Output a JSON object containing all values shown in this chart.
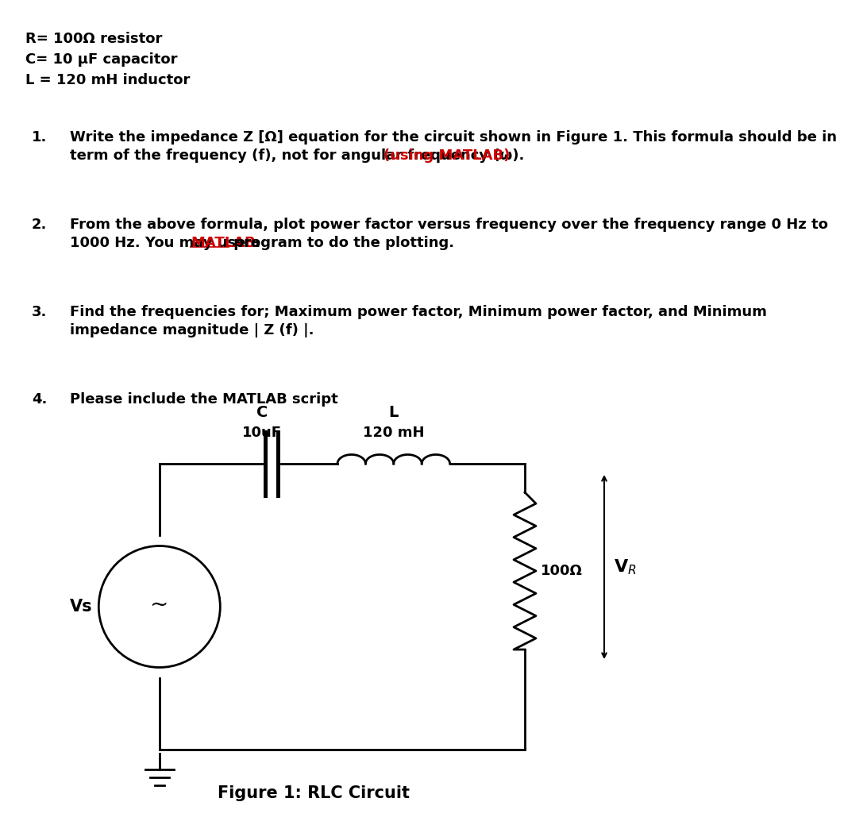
{
  "bg_color": "#ffffff",
  "header_lines": [
    "R= 100Ω resistor",
    "C= 10 μF capacitor",
    "L = 120 mH inductor"
  ],
  "q1_line1": "Write the impedance Z [Ω] equation for the circuit shown in Figure 1. This formula should be in",
  "q1_line2_black": "term of the frequency (f), not for angular frequency (ω).  ",
  "q1_line2_red": "(using MATLAB)",
  "q2_line1": "From the above formula, plot power factor versus frequency over the frequency range 0 Hz to",
  "q2_line2_p1": "1000 Hz. You may use a ",
  "q2_line2_red": "MATLAB",
  "q2_line2_p3": " program to do the plotting.",
  "q3_line1": "Find the frequencies for; Maximum power factor, Minimum power factor, and Minimum",
  "q3_line2": "impedance magnitude | Z (f) |.",
  "q4_line1": "Please include the MATLAB script",
  "fig_label": "Figure 1: RLC Circuit",
  "C_label": "C",
  "C_value": "10uF",
  "L_label": "L",
  "L_value": "120 mH",
  "R_label": "100Ω",
  "Vs_label": "Vs",
  "VR_label": "V$_R$",
  "red_color": "#cc0000",
  "black_color": "#000000"
}
